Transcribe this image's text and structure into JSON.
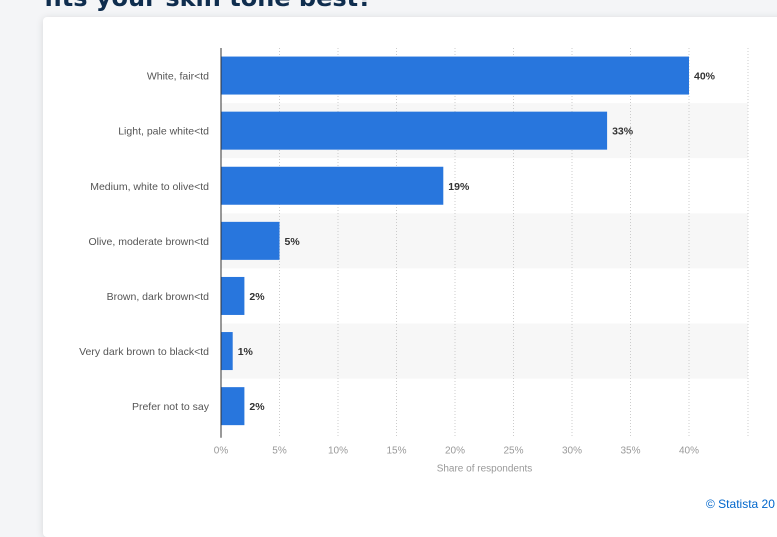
{
  "page": {
    "heading": "fits your skin tone best?",
    "copyright": "© Statista 20"
  },
  "colors": {
    "bar": "#2876dd",
    "band": "#f7f7f7",
    "grid": "#cccccc",
    "axis": "#333333",
    "tick_text": "#999999",
    "label_text": "#555555",
    "value_text": "#333333"
  },
  "chart_data": {
    "type": "bar",
    "orientation": "horizontal",
    "categories": [
      "White, fair<td",
      "Light, pale white<td",
      "Medium, white to olive<td",
      "Olive, moderate brown<td",
      "Brown, dark brown<td",
      "Very dark brown to black<td",
      "Prefer not to say"
    ],
    "values": [
      40,
      33,
      19,
      5,
      2,
      1,
      2
    ],
    "value_labels": [
      "40%",
      "33%",
      "19%",
      "5%",
      "2%",
      "1%",
      "2%"
    ],
    "xlabel": "Share of respondents",
    "ylabel": "",
    "xlim": [
      0,
      45
    ],
    "ticks": [
      0,
      5,
      10,
      15,
      20,
      25,
      30,
      35,
      40
    ],
    "tick_labels": [
      "0%",
      "5%",
      "10%",
      "15%",
      "20%",
      "25%",
      "30%",
      "35%",
      "40%"
    ],
    "grid": true,
    "legend": "none"
  }
}
